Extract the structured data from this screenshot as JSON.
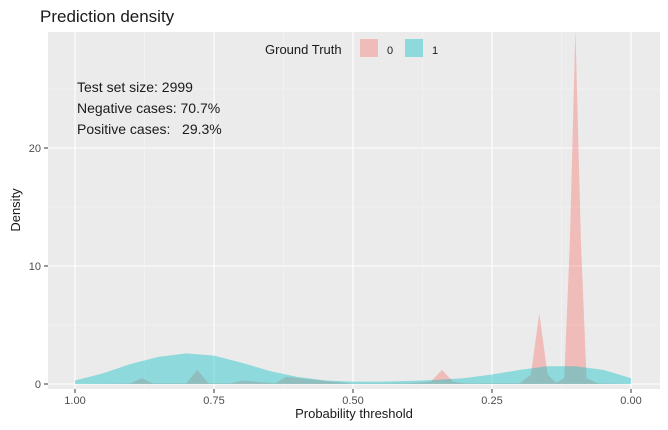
{
  "chart_data": {
    "type": "area",
    "title": "Prediction density",
    "xlabel": "Probability threshold",
    "ylabel": "Density",
    "x_reversed": true,
    "xlim": [
      1.0,
      0.0
    ],
    "ylim": [
      0,
      30
    ],
    "x_ticks": [
      1.0,
      0.75,
      0.5,
      0.25,
      0.0
    ],
    "x_tick_labels": [
      "1.00",
      "0.75",
      "0.50",
      "0.25",
      "0.00"
    ],
    "y_ticks": [
      0,
      10,
      20
    ],
    "y_tick_labels": [
      "0",
      "10",
      "20"
    ],
    "grid": true,
    "background": "#ebebeb",
    "legend": {
      "title": "Ground Truth",
      "position": "top-center",
      "entries": [
        {
          "label": "0",
          "color": "#f8766d"
        },
        {
          "label": "1",
          "color": "#00bfc4"
        }
      ]
    },
    "annotations": [
      "Test set size: 2999",
      "Negative cases: 70.7%",
      "Positive cases:   29.3%"
    ],
    "series": [
      {
        "class": "0",
        "color": "#f8766d",
        "opacity": 0.4,
        "x": [
          1.0,
          0.9,
          0.88,
          0.86,
          0.8,
          0.78,
          0.76,
          0.72,
          0.7,
          0.64,
          0.62,
          0.5,
          0.4,
          0.36,
          0.34,
          0.32,
          0.3,
          0.2,
          0.18,
          0.165,
          0.15,
          0.135,
          0.12,
          0.11,
          0.1,
          0.09,
          0.08,
          0.06,
          0.0
        ],
        "y": [
          0.0,
          0.05,
          0.5,
          0.05,
          0.05,
          1.2,
          0.05,
          0.05,
          0.3,
          0.05,
          0.6,
          0.02,
          0.05,
          0.2,
          1.2,
          0.2,
          0.05,
          0.05,
          0.8,
          6.0,
          0.8,
          0.1,
          0.5,
          12.0,
          30.0,
          12.0,
          0.5,
          0.05,
          0.0
        ]
      },
      {
        "class": "1",
        "color": "#00bfc4",
        "opacity": 0.4,
        "x": [
          1.0,
          0.95,
          0.9,
          0.85,
          0.8,
          0.75,
          0.7,
          0.65,
          0.6,
          0.55,
          0.5,
          0.45,
          0.4,
          0.35,
          0.3,
          0.25,
          0.2,
          0.15,
          0.1,
          0.05,
          0.0
        ],
        "y": [
          0.3,
          0.9,
          1.7,
          2.3,
          2.6,
          2.4,
          1.8,
          1.1,
          0.6,
          0.3,
          0.2,
          0.2,
          0.25,
          0.35,
          0.5,
          0.8,
          1.2,
          1.5,
          1.5,
          1.2,
          0.5
        ]
      }
    ]
  }
}
